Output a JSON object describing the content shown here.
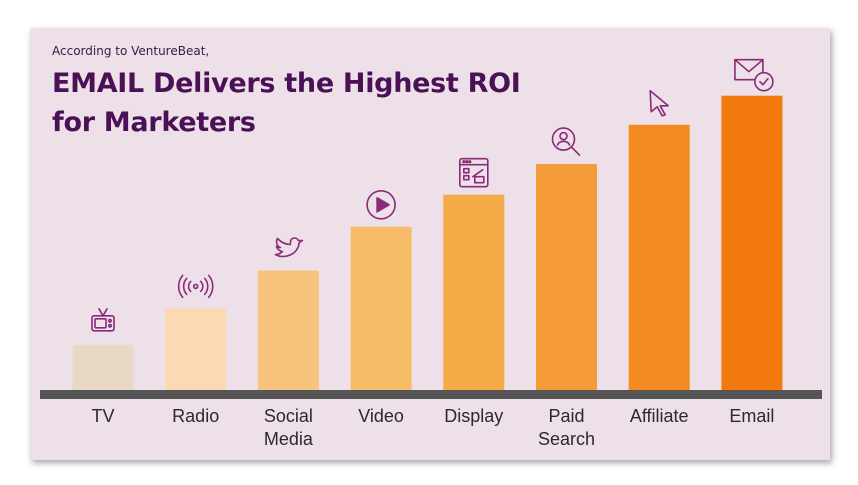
{
  "header": {
    "subtitle": "According to VentureBeat,",
    "title": "EMAIL Delivers the Highest ROI for Marketers"
  },
  "colors": {
    "background": "#ede0e8",
    "title": "#4a1156",
    "icon": "#8a2a7a",
    "baseline": "#555555"
  },
  "chart_data": {
    "type": "bar",
    "title": "EMAIL Delivers the Highest ROI for Marketers",
    "subtitle": "According to VentureBeat,",
    "xlabel": "",
    "ylabel": "",
    "grid": false,
    "legend": "none",
    "categories": [
      "TV",
      "Radio",
      "Social Media",
      "Video",
      "Display",
      "Paid Search",
      "Affiliate",
      "Email"
    ],
    "category_lines": [
      [
        "TV"
      ],
      [
        "Radio"
      ],
      [
        "Social",
        "Media"
      ],
      [
        "Video"
      ],
      [
        "Display"
      ],
      [
        "Paid",
        "Search"
      ],
      [
        "Affiliate"
      ],
      [
        "Email"
      ]
    ],
    "values": [
      1.55,
      2.8,
      4.1,
      5.6,
      6.7,
      7.75,
      9.1,
      10.1
    ],
    "ylim": [
      0,
      10.5
    ],
    "bar_colors": [
      "#e8d8c4",
      "#fad9b3",
      "#f8c47d",
      "#f6bc68",
      "#f5ab48",
      "#f49a38",
      "#f48a22",
      "#f37a0e"
    ],
    "icons": [
      "tv-icon",
      "radio-icon",
      "twitter-bird-icon",
      "play-icon",
      "display-window-icon",
      "search-person-icon",
      "cursor-icon",
      "email-check-icon"
    ]
  }
}
